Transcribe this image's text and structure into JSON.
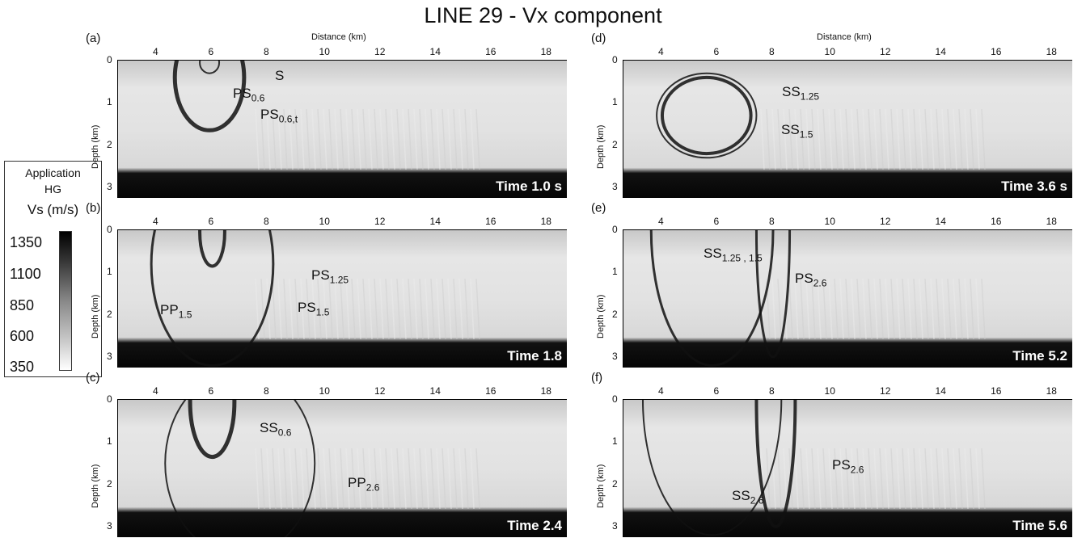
{
  "title": "LINE 29 - Vx component",
  "legend": {
    "line1": "Application",
    "line2": "HG",
    "unit": "Vs (m/s)",
    "values": [
      "1350",
      "1100",
      "850",
      "600",
      "350"
    ]
  },
  "axes": {
    "xlabel": "Distance (km)",
    "ylabel": "Depth (km)",
    "xticks": [
      "4",
      "6",
      "8",
      "10",
      "12",
      "14",
      "16",
      "18"
    ],
    "yticks": [
      "0",
      "1",
      "2",
      "3"
    ]
  },
  "panels": [
    {
      "id": "a",
      "label": "(a)",
      "time": "Time 1.0 s",
      "annotations": [
        {
          "main": "S",
          "sub": ""
        },
        {
          "main": "PS",
          "sub": "0.6"
        },
        {
          "main": "PS",
          "sub": "0.6,t"
        }
      ]
    },
    {
      "id": "b",
      "label": "(b)",
      "time": "Time 1.8",
      "annotations": [
        {
          "main": "PP",
          "sub": "1.5"
        },
        {
          "main": "PS",
          "sub": "1.25"
        },
        {
          "main": "PS",
          "sub": "1.5"
        }
      ]
    },
    {
      "id": "c",
      "label": "(c)",
      "time": "Time 2.4",
      "annotations": [
        {
          "main": "SS",
          "sub": "0.6"
        },
        {
          "main": "PP",
          "sub": "2.6"
        }
      ]
    },
    {
      "id": "d",
      "label": "(d)",
      "time": "Time 3.6 s",
      "annotations": [
        {
          "main": "SS",
          "sub": "1.25"
        },
        {
          "main": "SS",
          "sub": "1.5"
        }
      ]
    },
    {
      "id": "e",
      "label": "(e)",
      "time": "Time 5.2",
      "annotations": [
        {
          "main": "SS",
          "sub": "1.25 , 1.5"
        },
        {
          "main": "PS",
          "sub": "2.6"
        }
      ]
    },
    {
      "id": "f",
      "label": "(f)",
      "time": "Time 5.6",
      "annotations": [
        {
          "main": "PS",
          "sub": "2.6"
        },
        {
          "main": "SS",
          "sub": "2.6"
        }
      ]
    }
  ]
}
